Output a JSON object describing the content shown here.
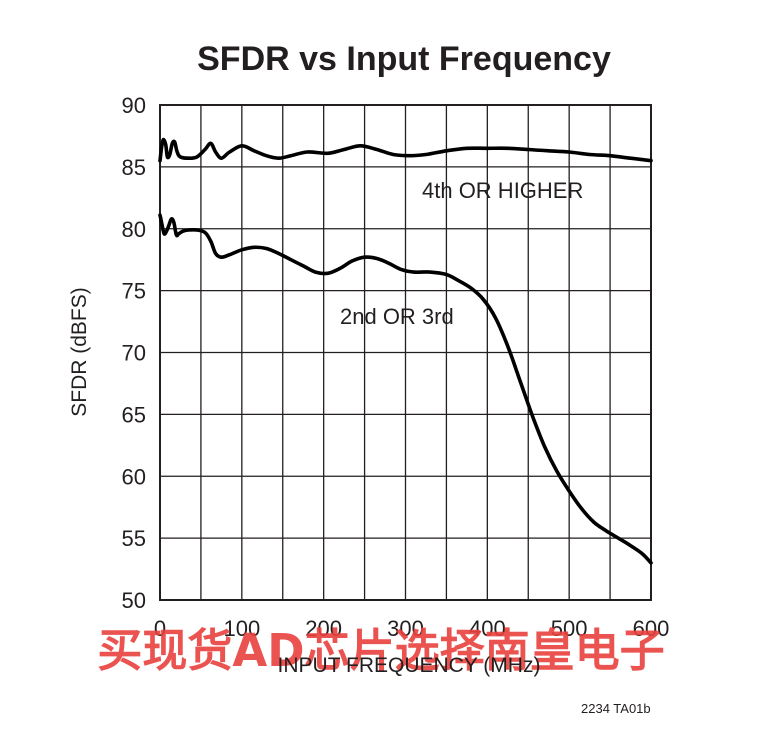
{
  "chart_data": {
    "type": "line",
    "title": "SFDR vs Input Frequency",
    "xlabel": "INPUT FREQUENCY (MHz)",
    "ylabel": "SFDR (dBFS)",
    "xlim": [
      0,
      600
    ],
    "ylim": [
      50,
      90
    ],
    "x_ticks": [
      0,
      100,
      200,
      300,
      400,
      500,
      600
    ],
    "y_ticks": [
      50,
      55,
      60,
      65,
      70,
      75,
      80,
      85,
      90
    ],
    "grid": true,
    "series": [
      {
        "name": "4th OR HIGHER",
        "points": [
          [
            0,
            85.5
          ],
          [
            2,
            86.6
          ],
          [
            4,
            87.2
          ],
          [
            7,
            86.8
          ],
          [
            9,
            85.8
          ],
          [
            12,
            86.0
          ],
          [
            15,
            86.9
          ],
          [
            18,
            87.0
          ],
          [
            21,
            86.2
          ],
          [
            25,
            85.8
          ],
          [
            35,
            85.7
          ],
          [
            45,
            85.8
          ],
          [
            55,
            86.4
          ],
          [
            62,
            86.9
          ],
          [
            68,
            86.2
          ],
          [
            75,
            85.7
          ],
          [
            85,
            86.2
          ],
          [
            100,
            86.7
          ],
          [
            115,
            86.3
          ],
          [
            130,
            85.9
          ],
          [
            145,
            85.7
          ],
          [
            160,
            85.9
          ],
          [
            180,
            86.2
          ],
          [
            205,
            86.1
          ],
          [
            225,
            86.4
          ],
          [
            245,
            86.7
          ],
          [
            265,
            86.4
          ],
          [
            285,
            86.0
          ],
          [
            305,
            85.9
          ],
          [
            325,
            86.0
          ],
          [
            350,
            86.3
          ],
          [
            375,
            86.5
          ],
          [
            400,
            86.5
          ],
          [
            425,
            86.5
          ],
          [
            450,
            86.4
          ],
          [
            475,
            86.3
          ],
          [
            500,
            86.2
          ],
          [
            525,
            86.0
          ],
          [
            550,
            85.9
          ],
          [
            575,
            85.7
          ],
          [
            600,
            85.5
          ]
        ],
        "label_position": "above curve, right of center"
      },
      {
        "name": "2nd OR 3rd",
        "points": [
          [
            0,
            81.1
          ],
          [
            2,
            80.5
          ],
          [
            5,
            79.6
          ],
          [
            8,
            79.8
          ],
          [
            11,
            80.3
          ],
          [
            14,
            80.8
          ],
          [
            17,
            80.5
          ],
          [
            20,
            79.5
          ],
          [
            23,
            79.6
          ],
          [
            28,
            79.8
          ],
          [
            35,
            79.9
          ],
          [
            45,
            79.9
          ],
          [
            55,
            79.7
          ],
          [
            62,
            79.0
          ],
          [
            68,
            78.0
          ],
          [
            75,
            77.7
          ],
          [
            85,
            77.9
          ],
          [
            100,
            78.3
          ],
          [
            115,
            78.5
          ],
          [
            130,
            78.4
          ],
          [
            145,
            78.0
          ],
          [
            160,
            77.5
          ],
          [
            175,
            77.0
          ],
          [
            190,
            76.5
          ],
          [
            205,
            76.4
          ],
          [
            220,
            76.8
          ],
          [
            235,
            77.4
          ],
          [
            250,
            77.7
          ],
          [
            265,
            77.6
          ],
          [
            280,
            77.2
          ],
          [
            295,
            76.7
          ],
          [
            310,
            76.5
          ],
          [
            330,
            76.5
          ],
          [
            350,
            76.3
          ],
          [
            365,
            75.8
          ],
          [
            380,
            75.2
          ],
          [
            395,
            74.3
          ],
          [
            410,
            72.8
          ],
          [
            425,
            70.5
          ],
          [
            440,
            67.7
          ],
          [
            455,
            64.9
          ],
          [
            470,
            62.4
          ],
          [
            485,
            60.4
          ],
          [
            500,
            58.8
          ],
          [
            515,
            57.4
          ],
          [
            530,
            56.3
          ],
          [
            545,
            55.6
          ],
          [
            560,
            55.0
          ],
          [
            575,
            54.4
          ],
          [
            590,
            53.7
          ],
          [
            600,
            53.0
          ]
        ],
        "label_position": "below curve, center"
      }
    ]
  },
  "figure_id": "2234 TA01b",
  "watermark": {
    "text": "买现货AD芯片选择南皇电子",
    "color": "#e8413c"
  }
}
